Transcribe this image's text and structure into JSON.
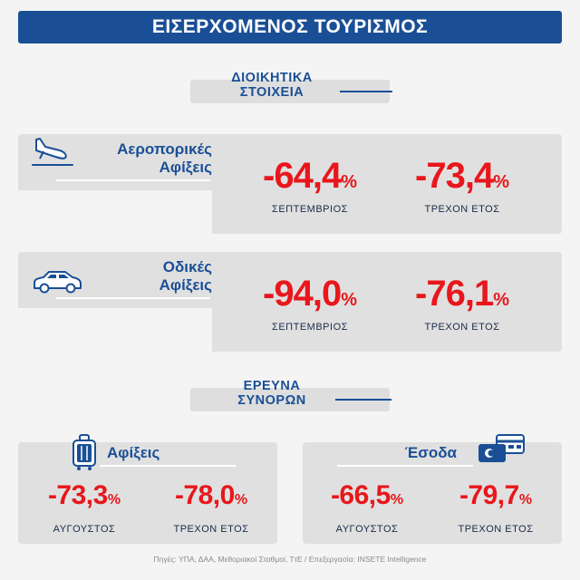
{
  "title": "ΕΙΣΕΡΧΟΜΕΝΟΣ ΤΟΥΡΙΣΜΟΣ",
  "section1": {
    "line1": "ΔΙΟΙΚΗΤΙΚΑ",
    "line2": "ΣΤΟΙΧΕΙΑ"
  },
  "air": {
    "label1": "Αεροπορικές",
    "label2": "Αφίξεις",
    "v1": "-64,4",
    "v1_label": "ΣΕΠΤΕΜΒΡΙΟΣ",
    "v2": "-73,4",
    "v2_label": "ΤΡΕΧΟΝ ΕΤΟΣ",
    "icon": "airplane-landing-icon"
  },
  "road": {
    "label1": "Οδικές",
    "label2": "Αφίξεις",
    "v1": "-94,0",
    "v1_label": "ΣΕΠΤΕΜΒΡΙΟΣ",
    "v2": "-76,1",
    "v2_label": "ΤΡΕΧΟΝ ΕΤΟΣ",
    "icon": "car-icon"
  },
  "section2": {
    "line1": "ΕΡΕΥΝΑ",
    "line2": "ΣΥΝΟΡΩΝ"
  },
  "arrivals": {
    "label": "Αφίξεις",
    "v1": "-73,3",
    "v1_label": "ΑΥΓΟΥΣΤΟΣ",
    "v2": "-78,0",
    "v2_label": "ΤΡΕΧΟΝ ΕΤΟΣ",
    "icon": "suitcase-icon"
  },
  "revenue": {
    "label": "Έσοδα",
    "v1": "-66,5",
    "v1_label": "ΑΥΓΟΥΣΤΟΣ",
    "v2": "-79,7",
    "v2_label": "ΤΡΕΧΟΝ ΕΤΟΣ",
    "icon": "credit-card-icon"
  },
  "percent": "%",
  "footer": "Πηγές: ΥΠΑ, ΔΑΑ, Μεθοριακοί Σταθμοί, ΤτΕ / Επεξεργασία: INSETE Intelligence",
  "colors": {
    "blue": "#1a4f96",
    "red": "#e8171c",
    "panel": "#e0e0e0"
  }
}
